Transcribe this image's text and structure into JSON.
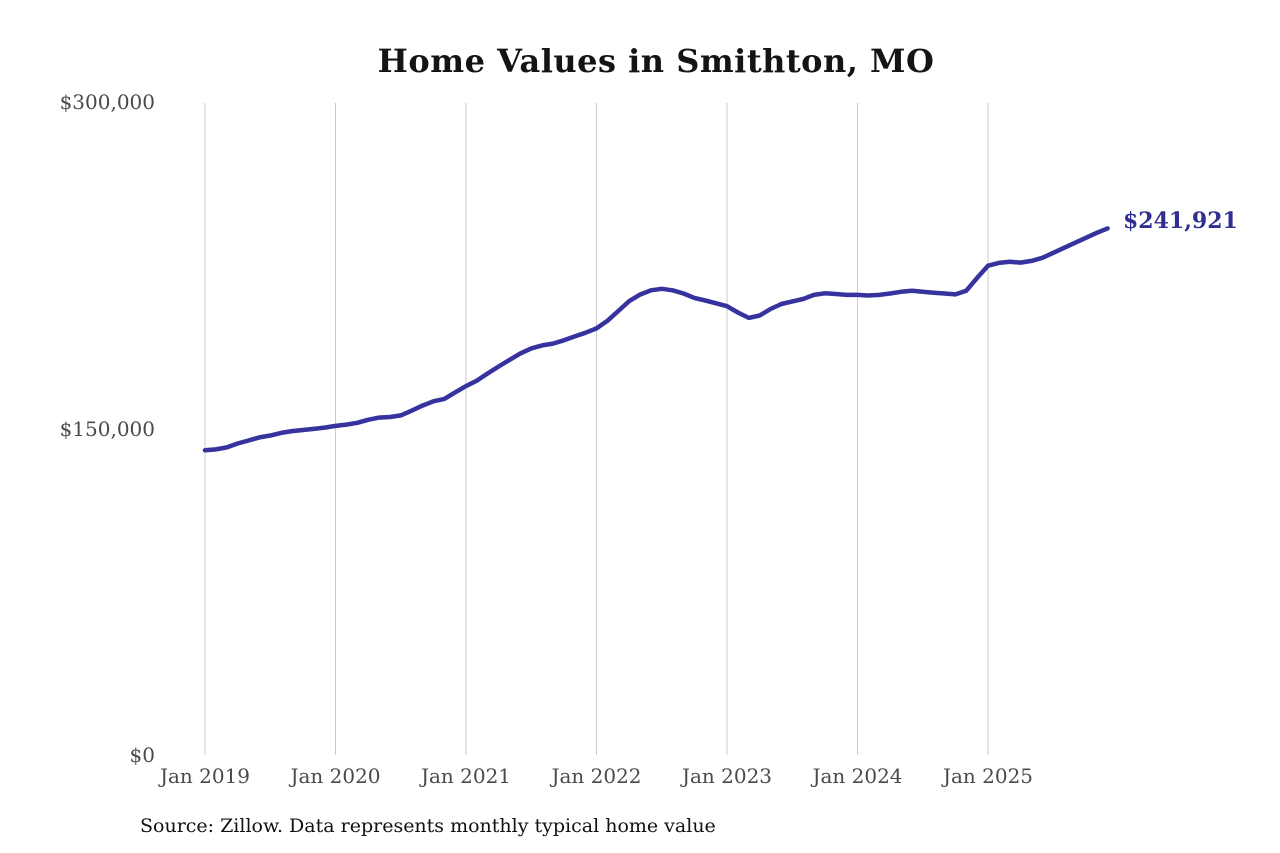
{
  "source_note": "Source: Zillow. Data represents monthly typical home value",
  "colors": {
    "line": "#37339e",
    "end_label": "#312e91",
    "grid": "#cbcbcb",
    "axis_text": "#4a4a4a",
    "title_text": "#141414",
    "source_text": "#111111",
    "background": "#ffffff"
  },
  "chart_data": {
    "type": "line",
    "title": "Home Values in Smithton, MO",
    "end_label": "$241,921",
    "latest_value": 241921,
    "frequency": "monthly",
    "x_start": "2019-01",
    "x_end": "2025-12",
    "x_tick_labels": [
      "Jan 2019",
      "Jan 2020",
      "Jan 2021",
      "Jan 2022",
      "Jan 2023",
      "Jan 2024",
      "Jan 2025"
    ],
    "y_tick_labels": [
      "$0",
      "$150,000",
      "$300,000"
    ],
    "y_tick_values": [
      0,
      150000,
      300000
    ],
    "ylim": [
      0,
      300000
    ],
    "xlabel": "",
    "ylabel": "",
    "legend": "none",
    "grid": "vertical",
    "series": [
      {
        "name": "Typical home value",
        "values": [
          140000,
          140400,
          141300,
          143100,
          144500,
          145900,
          146800,
          148000,
          148800,
          149300,
          149800,
          150400,
          151200,
          151800,
          152600,
          154000,
          155000,
          155300,
          156000,
          158200,
          160500,
          162500,
          163600,
          166600,
          169500,
          172000,
          175300,
          178500,
          181500,
          184500,
          186800,
          188200,
          189000,
          190500,
          192300,
          194000,
          196000,
          199500,
          204000,
          208500,
          211500,
          213500,
          214200,
          213500,
          212000,
          210000,
          208800,
          207500,
          206200,
          203300,
          200800,
          201900,
          204900,
          207200,
          208400,
          209500,
          211400,
          212100,
          211800,
          211400,
          211400,
          211100,
          211400,
          212000,
          212800,
          213300,
          212800,
          212400,
          212000,
          211600,
          213300,
          219200,
          224800,
          226100,
          226600,
          226200,
          227000,
          228400,
          230700,
          233000,
          235300,
          237600,
          239900,
          241921
        ]
      }
    ]
  }
}
